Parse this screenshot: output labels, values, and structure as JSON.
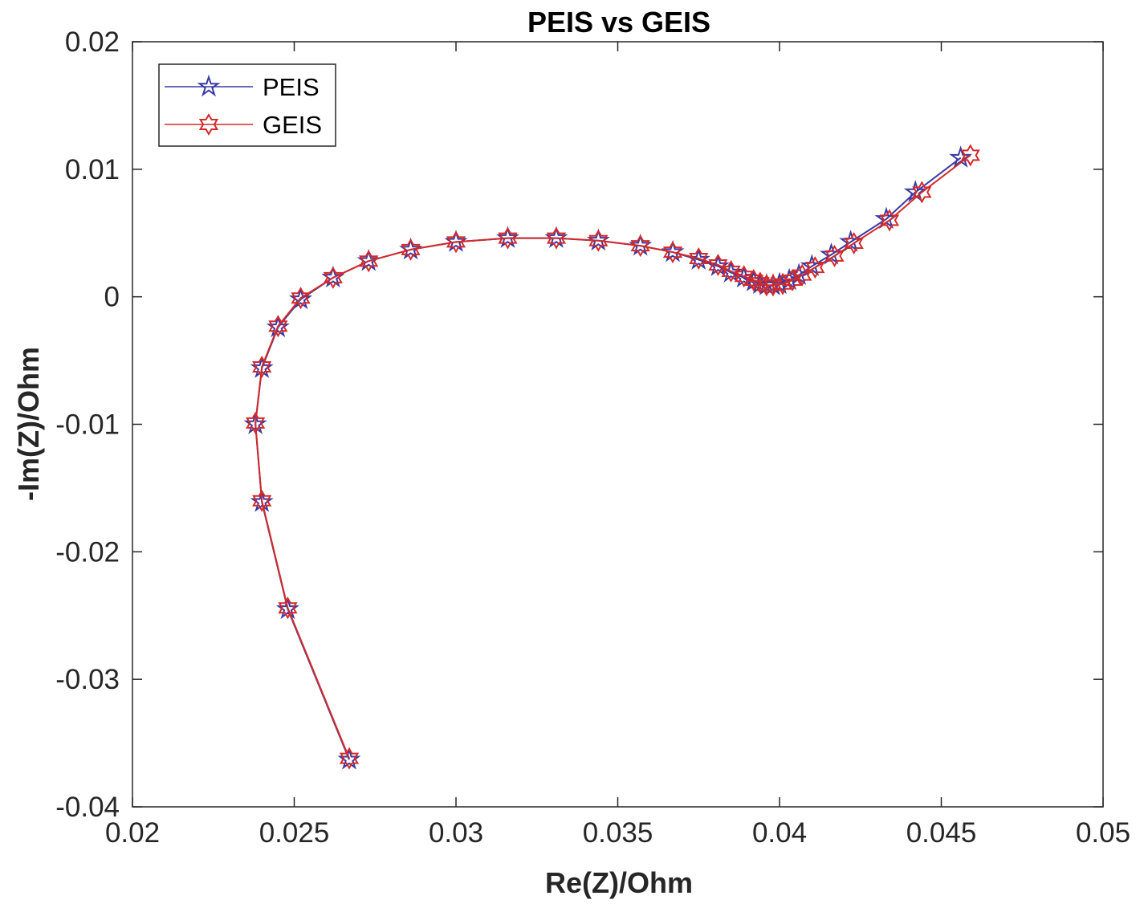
{
  "chart_data": {
    "type": "line",
    "title": "PEIS vs GEIS",
    "xlabel": "Re(Z)/Ohm",
    "ylabel": "-Im(Z)/Ohm",
    "xlim": [
      0.02,
      0.05
    ],
    "ylim": [
      -0.04,
      0.02
    ],
    "xticks": [
      0.02,
      0.025,
      0.03,
      0.035,
      0.04,
      0.045,
      0.05
    ],
    "xtick_labels": [
      "0.02",
      "0.025",
      "0.03",
      "0.035",
      "0.04",
      "0.045",
      "0.05"
    ],
    "yticks": [
      -0.04,
      -0.03,
      -0.02,
      -0.01,
      0,
      0.01,
      0.02
    ],
    "ytick_labels": [
      "-0.04",
      "-0.03",
      "-0.02",
      "-0.01",
      "0",
      "0.01",
      "0.02"
    ],
    "grid": false,
    "legend_position": "top-left",
    "series": [
      {
        "name": "PEIS",
        "color": "#3a3aa6",
        "marker": "pentagram",
        "points": [
          [
            0.0267,
            -0.0363
          ],
          [
            0.0248,
            -0.0245
          ],
          [
            0.024,
            -0.0161
          ],
          [
            0.0238,
            -0.01
          ],
          [
            0.024,
            -0.0056
          ],
          [
            0.0245,
            -0.0024
          ],
          [
            0.0252,
            -0.0002
          ],
          [
            0.0262,
            0.0015
          ],
          [
            0.0273,
            0.0028
          ],
          [
            0.0286,
            0.0037
          ],
          [
            0.03,
            0.0043
          ],
          [
            0.0316,
            0.0046
          ],
          [
            0.0331,
            0.0046
          ],
          [
            0.0344,
            0.0044
          ],
          [
            0.0357,
            0.004
          ],
          [
            0.0367,
            0.0035
          ],
          [
            0.0375,
            0.0029
          ],
          [
            0.0381,
            0.0024
          ],
          [
            0.0385,
            0.0019
          ],
          [
            0.0389,
            0.0015
          ],
          [
            0.0392,
            0.0012
          ],
          [
            0.0394,
            0.001
          ],
          [
            0.0396,
            0.0009
          ],
          [
            0.0398,
            0.0009
          ],
          [
            0.04,
            0.001
          ],
          [
            0.0403,
            0.0013
          ],
          [
            0.0406,
            0.0017
          ],
          [
            0.041,
            0.0024
          ],
          [
            0.0416,
            0.0033
          ],
          [
            0.0422,
            0.0043
          ],
          [
            0.0433,
            0.0061
          ],
          [
            0.0442,
            0.0082
          ],
          [
            0.0456,
            0.0109
          ]
        ]
      },
      {
        "name": "GEIS",
        "color": "#d42a2a",
        "marker": "hexagram",
        "points": [
          [
            0.0267,
            -0.0362
          ],
          [
            0.0248,
            -0.0244
          ],
          [
            0.024,
            -0.016
          ],
          [
            0.0238,
            -0.0099
          ],
          [
            0.024,
            -0.0055
          ],
          [
            0.0245,
            -0.0023
          ],
          [
            0.0252,
            -0.0001
          ],
          [
            0.0262,
            0.0015
          ],
          [
            0.0273,
            0.0028
          ],
          [
            0.0286,
            0.0037
          ],
          [
            0.03,
            0.0043
          ],
          [
            0.0316,
            0.0046
          ],
          [
            0.0331,
            0.0046
          ],
          [
            0.0344,
            0.0044
          ],
          [
            0.0357,
            0.004
          ],
          [
            0.0367,
            0.0035
          ],
          [
            0.0375,
            0.003
          ],
          [
            0.0381,
            0.0025
          ],
          [
            0.0385,
            0.002
          ],
          [
            0.0389,
            0.0016
          ],
          [
            0.0392,
            0.0013
          ],
          [
            0.0394,
            0.0011
          ],
          [
            0.0396,
            0.0009
          ],
          [
            0.0398,
            0.0009
          ],
          [
            0.0401,
            0.001
          ],
          [
            0.0404,
            0.0013
          ],
          [
            0.0407,
            0.0017
          ],
          [
            0.0411,
            0.0023
          ],
          [
            0.0417,
            0.0032
          ],
          [
            0.0423,
            0.0042
          ],
          [
            0.0434,
            0.006
          ],
          [
            0.0444,
            0.0082
          ],
          [
            0.0459,
            0.0111
          ]
        ]
      }
    ]
  }
}
